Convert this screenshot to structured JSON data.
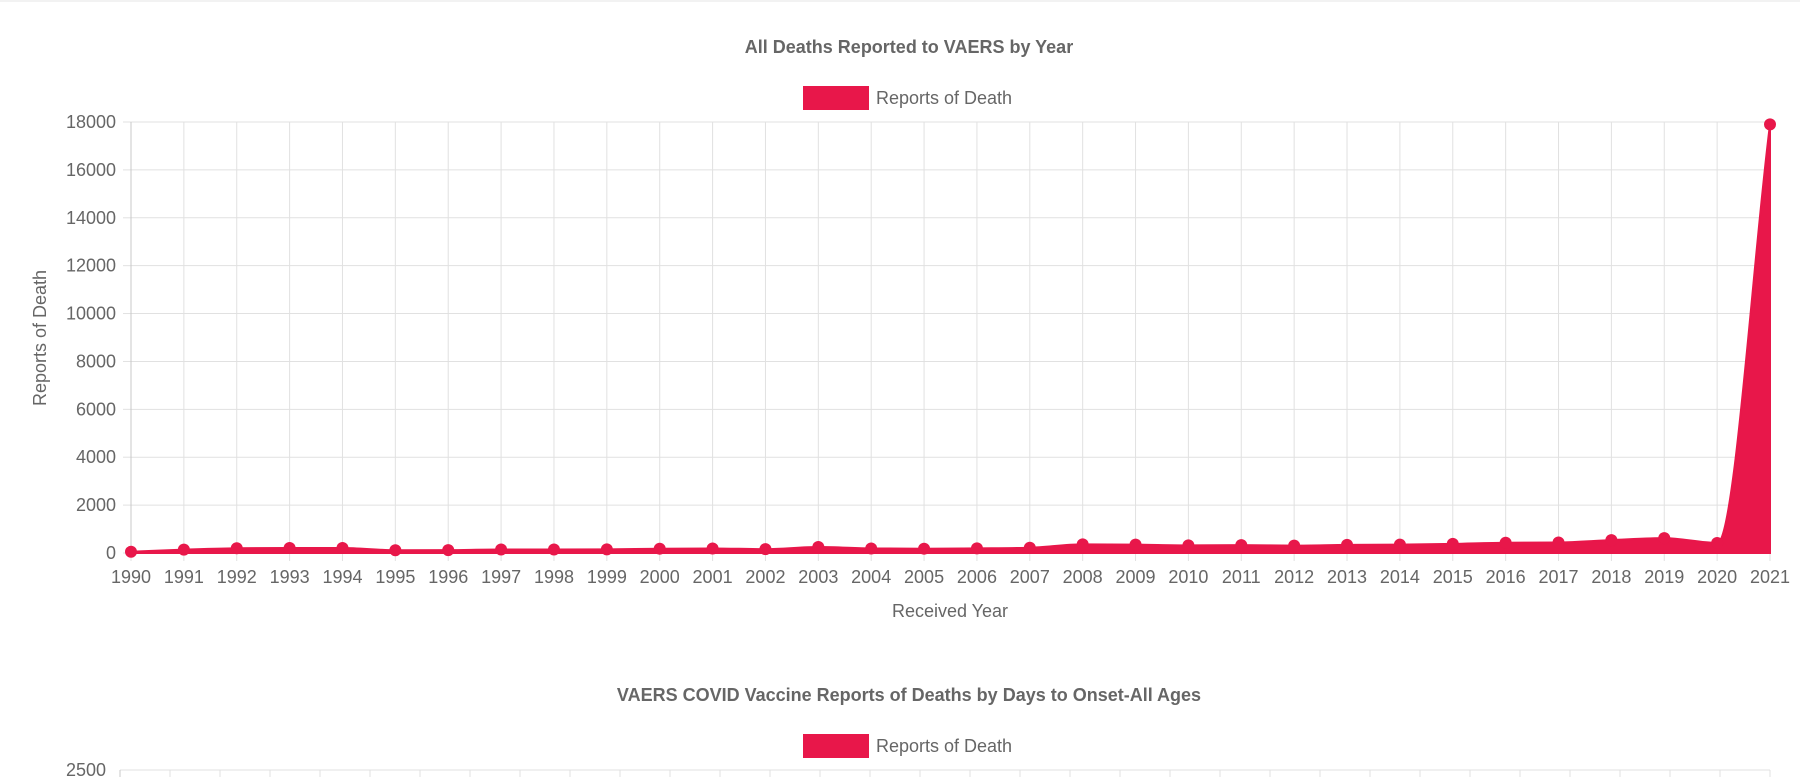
{
  "colors": {
    "series": "#e8174a",
    "text": "#666666",
    "grid": "#e1e1e1"
  },
  "chart_data": [
    {
      "type": "area",
      "title": "All Deaths Reported to VAERS by Year",
      "legend_position": "top-center",
      "legend": [
        "Reports of Death"
      ],
      "xlabel": "Received Year",
      "ylabel": "Reports of Death",
      "grid": true,
      "ylim": [
        0,
        18000
      ],
      "yticks": [
        0,
        2000,
        4000,
        6000,
        8000,
        10000,
        12000,
        14000,
        16000,
        18000
      ],
      "categories": [
        "1990",
        "1991",
        "1992",
        "1993",
        "1994",
        "1995",
        "1996",
        "1997",
        "1998",
        "1999",
        "2000",
        "2001",
        "2002",
        "2003",
        "2004",
        "2005",
        "2006",
        "2007",
        "2008",
        "2009",
        "2010",
        "2011",
        "2012",
        "2013",
        "2014",
        "2015",
        "2016",
        "2017",
        "2018",
        "2019",
        "2020",
        "2021"
      ],
      "series": [
        {
          "name": "Reports of Death",
          "values": [
            50,
            140,
            200,
            210,
            210,
            115,
            120,
            145,
            145,
            150,
            180,
            190,
            160,
            250,
            190,
            180,
            195,
            220,
            360,
            350,
            320,
            330,
            310,
            340,
            350,
            380,
            430,
            440,
            540,
            620,
            420,
            17900
          ]
        }
      ]
    },
    {
      "type": "bar",
      "title": "VAERS COVID Vaccine Reports of Deaths by Days to Onset-All Ages",
      "legend_position": "top-center",
      "legend": [
        "Reports of Death"
      ],
      "grid": true,
      "yticks": [
        2500
      ],
      "series": [
        {
          "name": "Reports of Death"
        }
      ]
    }
  ]
}
